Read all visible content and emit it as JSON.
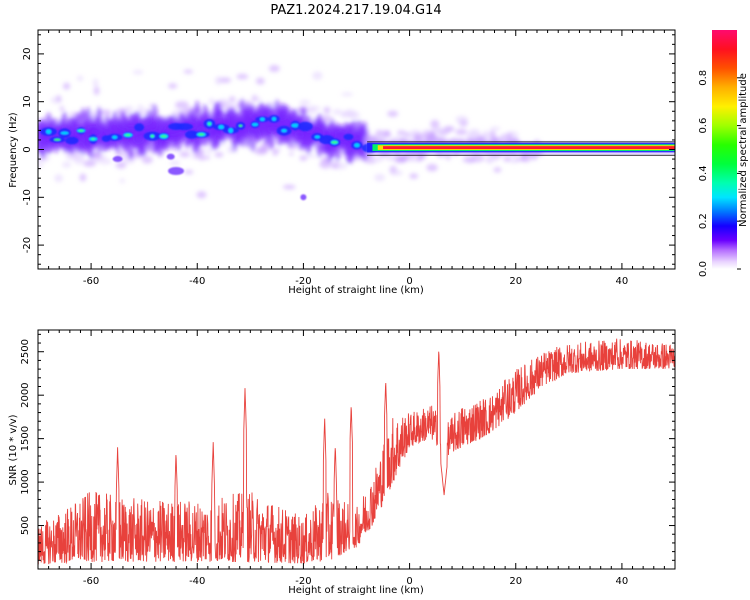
{
  "title": "PAZ1.2024.217.19.04.G14",
  "chart_data": [
    {
      "type": "heatmap",
      "xlabel": "Height of straight line (km)",
      "ylabel": "Frequency (Hz)",
      "xlim": [
        -70,
        50
      ],
      "ylim": [
        -25,
        25
      ],
      "x_ticks": [
        -60,
        -40,
        -20,
        0,
        20,
        40
      ],
      "y_ticks": [
        -20,
        -10,
        0,
        10,
        20
      ],
      "grid": false,
      "colorbar": {
        "label": "Normalized spectral amplitude",
        "range": [
          0,
          1
        ],
        "ticks": [
          0.0,
          0.2,
          0.4,
          0.6,
          0.8
        ],
        "colormap": "gist_ncar_like"
      },
      "ridge_frequency_hz": [
        {
          "x": -70,
          "f": 2.5
        },
        {
          "x": -60,
          "f": 3.0
        },
        {
          "x": -50,
          "f": 3.5
        },
        {
          "x": -40,
          "f": 4.0
        },
        {
          "x": -30,
          "f": 5.0
        },
        {
          "x": -25,
          "f": 5.5
        },
        {
          "x": -20,
          "f": 4.0
        },
        {
          "x": -15,
          "f": 2.5
        },
        {
          "x": -10,
          "f": 2.0
        },
        {
          "x": -7,
          "f": 0.8
        },
        {
          "x": 0,
          "f": 0.8
        },
        {
          "x": 5,
          "f": 1.5
        },
        {
          "x": 10,
          "f": 0.8
        },
        {
          "x": 20,
          "f": 0.3
        },
        {
          "x": 25,
          "f": 0.0
        },
        {
          "x": 50,
          "f": 0.0
        }
      ]
    },
    {
      "type": "line",
      "xlabel": "Height of straight line (km)",
      "ylabel": "SNR (10 * v/v)",
      "xlim": [
        -70,
        50
      ],
      "ylim": [
        0,
        2750
      ],
      "x_ticks": [
        -60,
        -40,
        -20,
        0,
        20,
        40
      ],
      "y_ticks": [
        500,
        1000,
        1500,
        2000,
        2500
      ],
      "grid": false,
      "series": [
        {
          "color": "#e8413c",
          "envelope": [
            {
              "x": -70,
              "lo": 50,
              "hi": 500
            },
            {
              "x": -60,
              "lo": 80,
              "hi": 900
            },
            {
              "x": -50,
              "lo": 80,
              "hi": 800
            },
            {
              "x": -40,
              "lo": 80,
              "hi": 800
            },
            {
              "x": -30,
              "lo": 80,
              "hi": 900
            },
            {
              "x": -20,
              "lo": 60,
              "hi": 600
            },
            {
              "x": -15,
              "lo": 100,
              "hi": 900
            },
            {
              "x": -10,
              "lo": 250,
              "hi": 700
            },
            {
              "x": -7,
              "lo": 500,
              "hi": 1100
            },
            {
              "x": -3,
              "lo": 1000,
              "hi": 1800
            },
            {
              "x": 0,
              "lo": 1400,
              "hi": 1800
            },
            {
              "x": 4,
              "lo": 1500,
              "hi": 1900
            },
            {
              "x": 7,
              "lo": 1300,
              "hi": 1700
            },
            {
              "x": 10,
              "lo": 1400,
              "hi": 1900
            },
            {
              "x": 15,
              "lo": 1550,
              "hi": 2000
            },
            {
              "x": 20,
              "lo": 1800,
              "hi": 2300
            },
            {
              "x": 25,
              "lo": 2100,
              "hi": 2500
            },
            {
              "x": 30,
              "lo": 2250,
              "hi": 2600
            },
            {
              "x": 40,
              "lo": 2300,
              "hi": 2650
            },
            {
              "x": 50,
              "lo": 2300,
              "hi": 2600
            }
          ],
          "spikes": [
            {
              "x": -31,
              "y": 2080
            },
            {
              "x": -44,
              "y": 1350
            },
            {
              "x": -37,
              "y": 1460
            },
            {
              "x": -55,
              "y": 1400
            },
            {
              "x": -16,
              "y": 1730
            },
            {
              "x": -14,
              "y": 1430
            },
            {
              "x": -11,
              "y": 1900
            },
            {
              "x": -4.5,
              "y": 2180
            },
            {
              "x": 5.5,
              "y": 2540
            },
            {
              "x": 6.5,
              "y": 850
            },
            {
              "x": 18,
              "y": 2200
            },
            {
              "x": 39,
              "y": 2690
            }
          ]
        }
      ]
    }
  ]
}
